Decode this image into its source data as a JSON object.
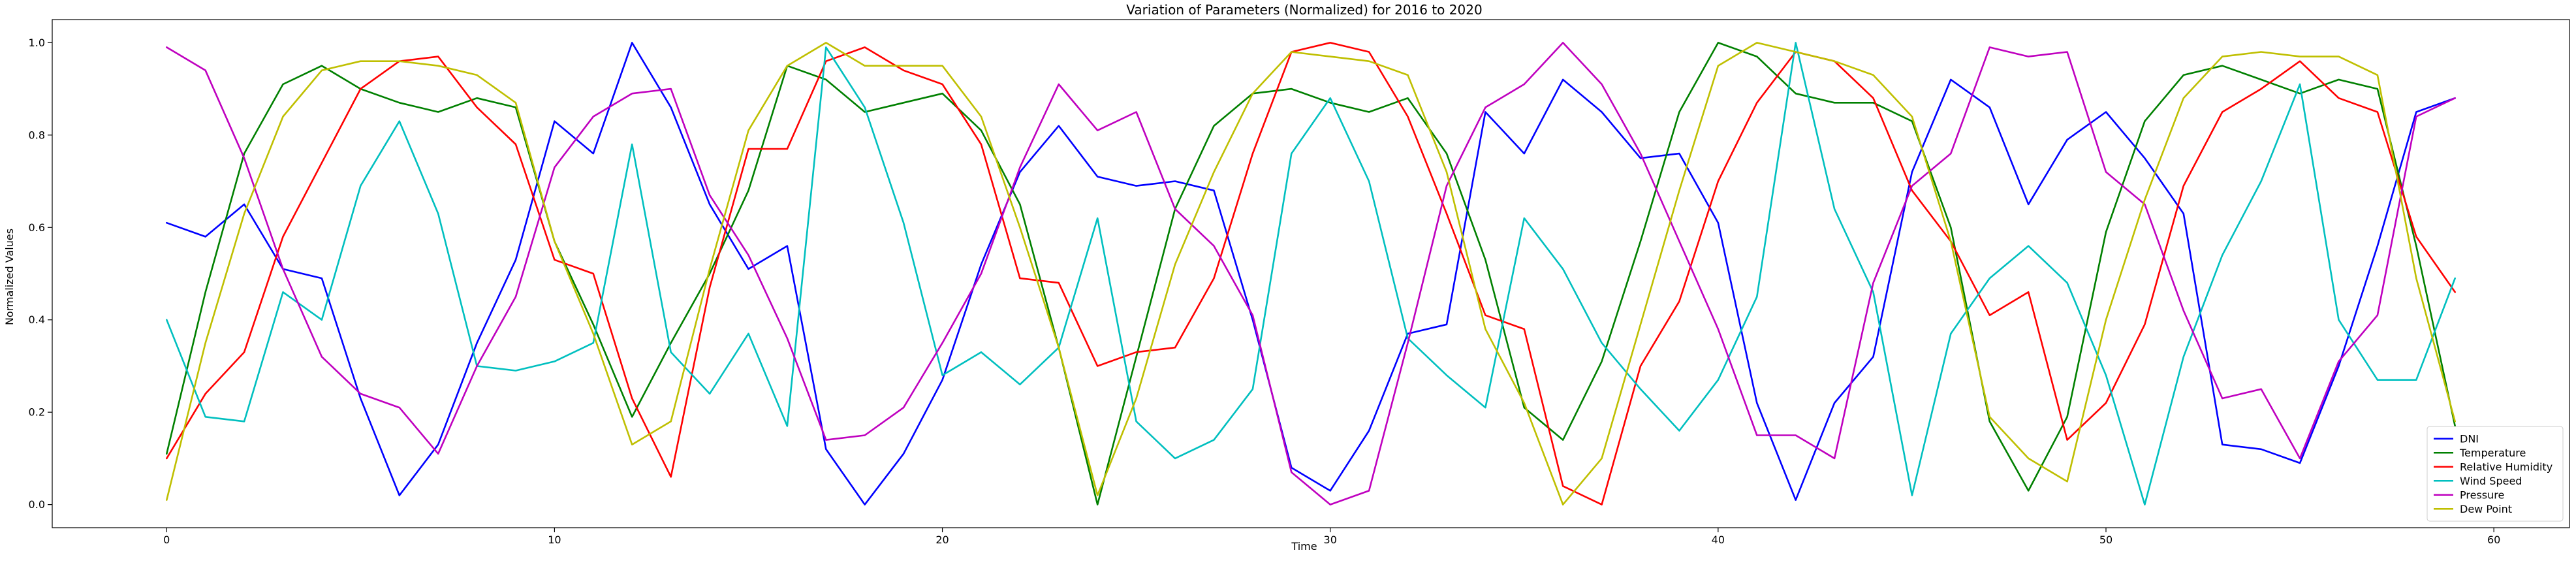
{
  "chart_data": {
    "type": "line",
    "title": "Variation of Parameters (Normalized) for 2016 to 2020",
    "xlabel": "Time",
    "ylabel": "Normalized Values",
    "xlim": [
      -2.95,
      61.95
    ],
    "ylim": [
      -0.05,
      1.05
    ],
    "xticks": [
      0,
      10,
      20,
      30,
      40,
      50,
      60
    ],
    "yticks": [
      0.0,
      0.2,
      0.4,
      0.6,
      0.8,
      1.0
    ],
    "xtick_labels": [
      "0",
      "10",
      "20",
      "30",
      "40",
      "50",
      "60"
    ],
    "ytick_labels": [
      "0.0",
      "0.2",
      "0.4",
      "0.6",
      "0.8",
      "1.0"
    ],
    "grid": false,
    "legend_position": "bottom-right",
    "x": [
      0,
      1,
      2,
      3,
      4,
      5,
      6,
      7,
      8,
      9,
      10,
      11,
      12,
      13,
      14,
      15,
      16,
      17,
      18,
      19,
      20,
      21,
      22,
      23,
      24,
      25,
      26,
      27,
      28,
      29,
      30,
      31,
      32,
      33,
      34,
      35,
      36,
      37,
      38,
      39,
      40,
      41,
      42,
      43,
      44,
      45,
      46,
      47,
      48,
      49,
      50,
      51,
      52,
      53,
      54,
      55,
      56,
      57,
      58,
      59
    ],
    "series": [
      {
        "name": "DNI",
        "color": "#0000ff",
        "values": [
          0.61,
          0.58,
          0.65,
          0.51,
          0.49,
          0.23,
          0.02,
          0.13,
          0.35,
          0.53,
          0.83,
          0.76,
          1.0,
          0.86,
          0.65,
          0.51,
          0.56,
          0.12,
          0.0,
          0.11,
          0.27,
          0.52,
          0.72,
          0.82,
          0.71,
          0.69,
          0.7,
          0.68,
          0.4,
          0.08,
          0.03,
          0.16,
          0.37,
          0.39,
          0.85,
          0.76,
          0.92,
          0.85,
          0.75,
          0.76,
          0.61,
          0.22,
          0.01,
          0.22,
          0.32,
          0.72,
          0.92,
          0.86,
          0.65,
          0.79,
          0.85,
          0.75,
          0.63,
          0.13,
          0.12,
          0.09,
          0.3,
          0.56,
          0.85,
          0.88
        ]
      },
      {
        "name": "Temperature",
        "color": "#008000",
        "values": [
          0.11,
          0.46,
          0.76,
          0.91,
          0.95,
          0.9,
          0.87,
          0.85,
          0.88,
          0.86,
          0.57,
          0.39,
          0.19,
          0.35,
          0.5,
          0.68,
          0.95,
          0.92,
          0.85,
          0.87,
          0.89,
          0.81,
          0.65,
          0.34,
          0.0,
          0.32,
          0.64,
          0.82,
          0.89,
          0.9,
          0.87,
          0.85,
          0.88,
          0.76,
          0.53,
          0.21,
          0.14,
          0.31,
          0.57,
          0.85,
          1.0,
          0.97,
          0.89,
          0.87,
          0.87,
          0.83,
          0.6,
          0.18,
          0.03,
          0.19,
          0.59,
          0.83,
          0.93,
          0.95,
          0.92,
          0.89,
          0.92,
          0.9,
          0.56,
          0.17
        ]
      },
      {
        "name": "Relative Humidity",
        "color": "#ff0000",
        "values": [
          0.1,
          0.24,
          0.33,
          0.58,
          0.74,
          0.9,
          0.96,
          0.97,
          0.86,
          0.78,
          0.53,
          0.5,
          0.23,
          0.06,
          0.47,
          0.77,
          0.77,
          0.96,
          0.99,
          0.94,
          0.91,
          0.78,
          0.49,
          0.48,
          0.3,
          0.33,
          0.34,
          0.49,
          0.76,
          0.98,
          1.0,
          0.98,
          0.84,
          0.63,
          0.41,
          0.38,
          0.04,
          0.0,
          0.3,
          0.44,
          0.7,
          0.87,
          0.98,
          0.96,
          0.88,
          0.68,
          0.57,
          0.41,
          0.46,
          0.14,
          0.22,
          0.39,
          0.69,
          0.85,
          0.9,
          0.96,
          0.88,
          0.85,
          0.58,
          0.46
        ]
      },
      {
        "name": "Wind Speed",
        "color": "#00bfbf",
        "values": [
          0.4,
          0.19,
          0.18,
          0.46,
          0.4,
          0.69,
          0.83,
          0.63,
          0.3,
          0.29,
          0.31,
          0.35,
          0.78,
          0.33,
          0.24,
          0.37,
          0.17,
          0.99,
          0.86,
          0.61,
          0.28,
          0.33,
          0.26,
          0.34,
          0.62,
          0.18,
          0.1,
          0.14,
          0.25,
          0.76,
          0.88,
          0.7,
          0.36,
          0.28,
          0.21,
          0.62,
          0.51,
          0.35,
          0.25,
          0.16,
          0.27,
          0.45,
          1.0,
          0.64,
          0.46,
          0.02,
          0.37,
          0.49,
          0.56,
          0.48,
          0.28,
          0.0,
          0.32,
          0.54,
          0.7,
          0.91,
          0.4,
          0.27,
          0.27,
          0.49
        ]
      },
      {
        "name": "Pressure",
        "color": "#bf00bf",
        "values": [
          0.99,
          0.94,
          0.75,
          0.51,
          0.32,
          0.24,
          0.21,
          0.11,
          0.3,
          0.45,
          0.73,
          0.84,
          0.89,
          0.9,
          0.67,
          0.54,
          0.36,
          0.14,
          0.15,
          0.21,
          0.35,
          0.5,
          0.73,
          0.91,
          0.81,
          0.85,
          0.64,
          0.56,
          0.41,
          0.07,
          0.0,
          0.03,
          0.35,
          0.69,
          0.86,
          0.91,
          1.0,
          0.91,
          0.76,
          0.57,
          0.38,
          0.15,
          0.15,
          0.1,
          0.48,
          0.69,
          0.76,
          0.99,
          0.97,
          0.98,
          0.72,
          0.65,
          0.42,
          0.23,
          0.25,
          0.1,
          0.31,
          0.41,
          0.84,
          0.88
        ]
      },
      {
        "name": "Dew Point",
        "color": "#bfbf00",
        "values": [
          0.01,
          0.35,
          0.63,
          0.84,
          0.94,
          0.96,
          0.96,
          0.95,
          0.93,
          0.87,
          0.57,
          0.37,
          0.13,
          0.18,
          0.51,
          0.81,
          0.95,
          1.0,
          0.95,
          0.95,
          0.95,
          0.84,
          0.6,
          0.34,
          0.02,
          0.23,
          0.52,
          0.72,
          0.89,
          0.98,
          0.97,
          0.96,
          0.93,
          0.72,
          0.38,
          0.22,
          0.0,
          0.1,
          0.39,
          0.68,
          0.95,
          1.0,
          0.98,
          0.96,
          0.93,
          0.84,
          0.57,
          0.19,
          0.1,
          0.05,
          0.4,
          0.66,
          0.88,
          0.97,
          0.98,
          0.97,
          0.97,
          0.93,
          0.49,
          0.18
        ]
      }
    ]
  }
}
